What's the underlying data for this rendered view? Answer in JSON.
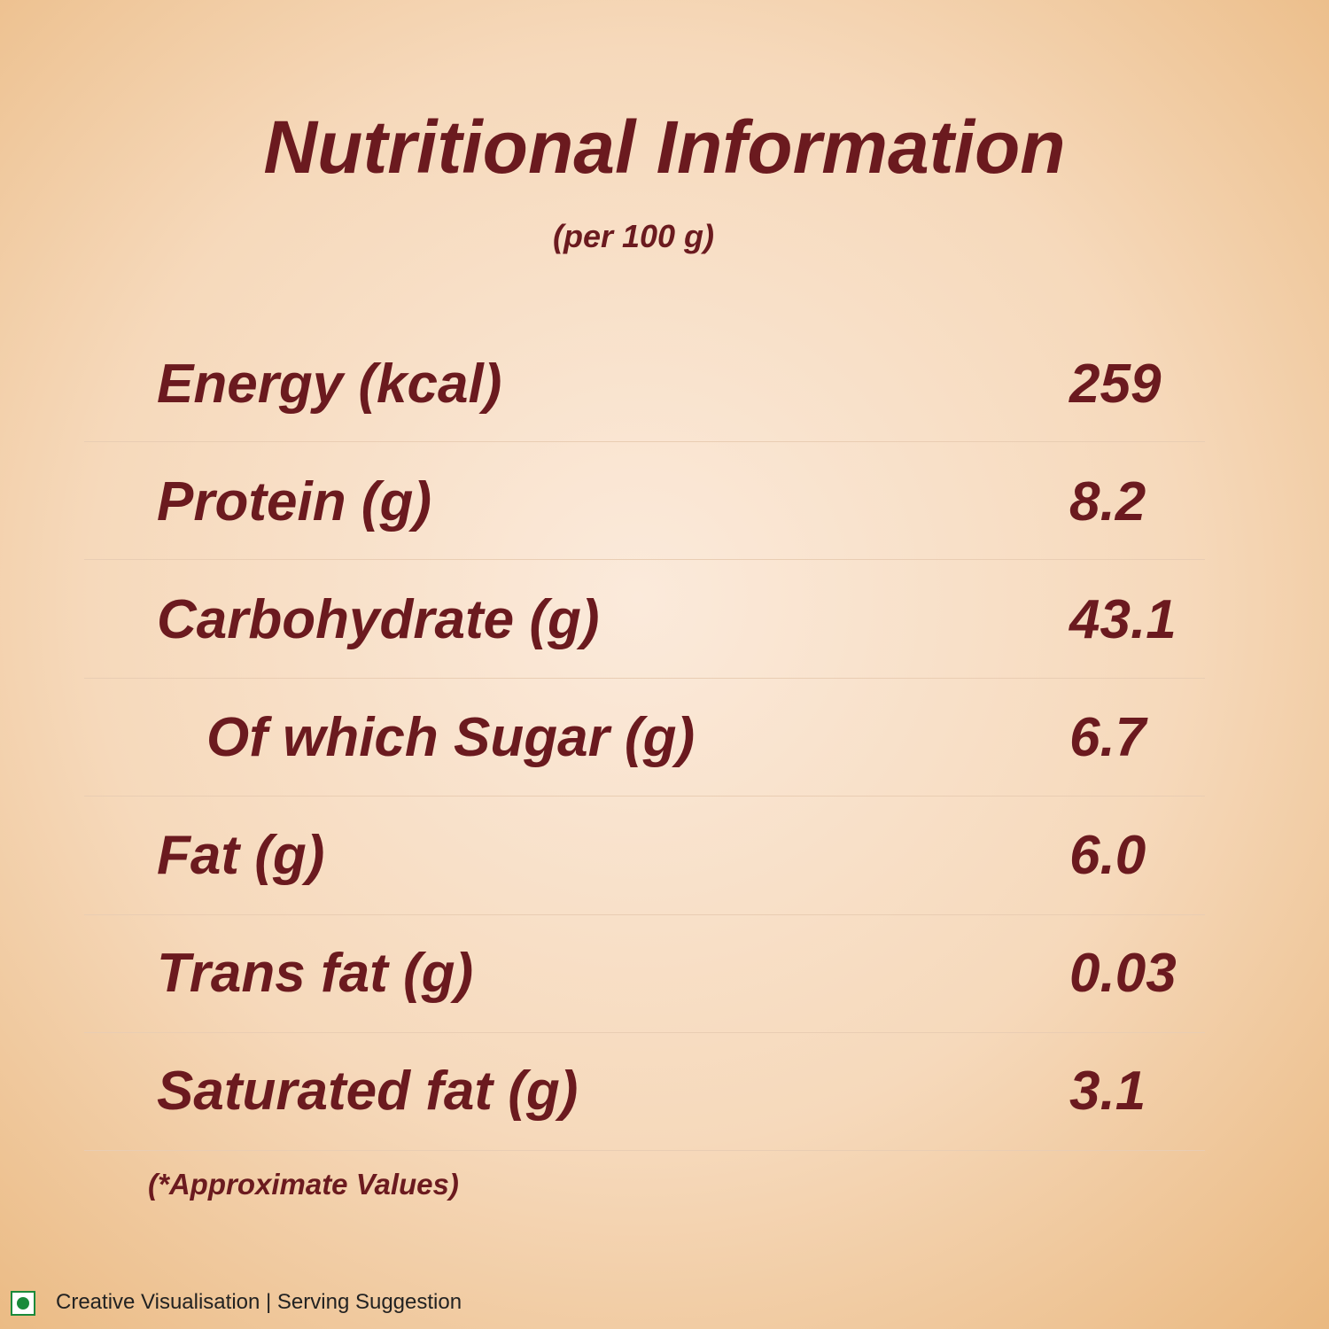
{
  "header": {
    "title": "Nutritional Information",
    "subtitle": "(per 100 g)"
  },
  "table": {
    "rows": [
      [
        "Energy (kcal)",
        "259"
      ],
      [
        "Protein (g)",
        "8.2"
      ],
      [
        "Carbohydrate (g)",
        "43.1"
      ],
      [
        "Of which Sugar (g)",
        "6.7"
      ],
      [
        "Fat (g)",
        "6.0"
      ],
      [
        "Trans fat (g)",
        "0.03"
      ],
      [
        "Saturated fat (g)",
        "3.1"
      ]
    ]
  },
  "note": "(*Approximate Values)",
  "footer": {
    "text": "Creative Visualisation | Serving Suggestion"
  }
}
